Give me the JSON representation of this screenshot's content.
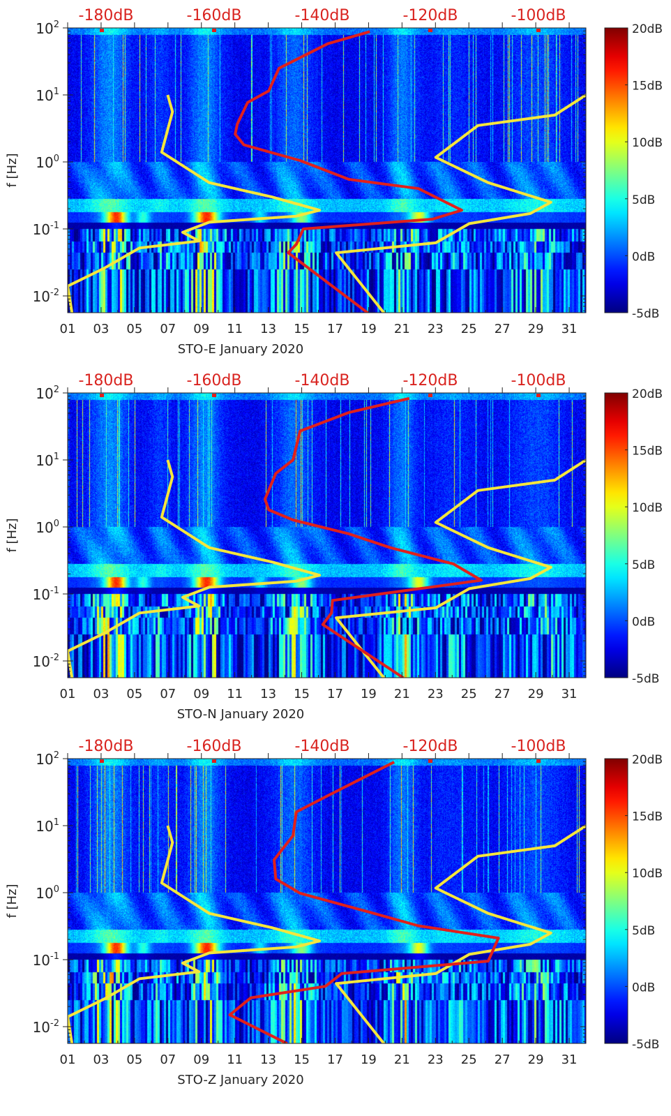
{
  "chart_data": [
    {
      "type": "heatmap",
      "title": "STO-E January 2020",
      "xlabel": "STO-E January 2020",
      "ylabel": "f [Hz]",
      "x_range_days": [
        1,
        32
      ],
      "x_tick_labels": [
        "01",
        "03",
        "05",
        "07",
        "09",
        "11",
        "13",
        "15",
        "17",
        "19",
        "21",
        "23",
        "25",
        "27",
        "29",
        "31"
      ],
      "y_range_hz": [
        0.0056,
        100
      ],
      "y_scale": "log",
      "y_tick_labels": [
        {
          "base": "10",
          "exp": "2"
        },
        {
          "base": "10",
          "exp": "1"
        },
        {
          "base": "10",
          "exp": "0"
        },
        {
          "base": "10",
          "exp": "-1"
        },
        {
          "base": "10",
          "exp": "-2"
        }
      ],
      "top_axis": {
        "range_db": [
          -187.6,
          -91.7
        ],
        "tick_values": [
          -180,
          -160,
          -140,
          -120,
          -100
        ],
        "tick_labels": [
          "-180dB",
          "-160dB",
          "-140dB",
          "-120dB",
          "-100dB"
        ]
      },
      "colorbar": {
        "range_db": [
          -5,
          20
        ],
        "tick_values": [
          20,
          15,
          10,
          5,
          0,
          -5
        ],
        "tick_labels": [
          "20dB",
          "15dB",
          "10dB",
          "5dB",
          "0dB",
          "-5dB"
        ],
        "colormap": "jet"
      },
      "curves": {
        "red": {
          "color": "#e0201c",
          "points_db_hz": [
            [
              -131.2,
              88
            ],
            [
              -139,
              58
            ],
            [
              -148,
              25
            ],
            [
              -149.9,
              11.5
            ],
            [
              -153.8,
              7.7
            ],
            [
              -155.7,
              3.7
            ],
            [
              -156.1,
              2.6
            ],
            [
              -154.5,
              1.8
            ],
            [
              -144.1,
              1.05
            ],
            [
              -135.1,
              0.55
            ],
            [
              -122.2,
              0.4
            ],
            [
              -114.2,
              0.19
            ],
            [
              -119.6,
              0.14
            ],
            [
              -143.5,
              0.1
            ],
            [
              -144.8,
              0.059
            ],
            [
              -146.3,
              0.044
            ],
            [
              -131.6,
              0.0056
            ]
          ]
        },
        "yellow_low": {
          "color": "#f5e63c",
          "points_db_hz": [
            [
              -168.6,
              10
            ],
            [
              -167.7,
              5.6
            ],
            [
              -169.7,
              1.4
            ],
            [
              -160.9,
              0.49
            ],
            [
              -149.3,
              0.3
            ],
            [
              -140.5,
              0.19
            ],
            [
              -144.8,
              0.155
            ],
            [
              -160.9,
              0.126
            ],
            [
              -165.8,
              0.089
            ],
            [
              -162.8,
              0.066
            ],
            [
              -173.8,
              0.052
            ],
            [
              -180.3,
              0.026
            ],
            [
              -187.1,
              0.014
            ],
            [
              -186.3,
              0.0056
            ]
          ]
        },
        "yellow_high": {
          "color": "#f5e63c",
          "points_db_hz": [
            [
              -91.2,
              10
            ],
            [
              -97,
              5
            ],
            [
              -111.2,
              3.5
            ],
            [
              -119,
              1.17
            ],
            [
              -109.3,
              0.49
            ],
            [
              -97.7,
              0.25
            ],
            [
              -101.5,
              0.17
            ],
            [
              -112.8,
              0.12
            ],
            [
              -119,
              0.062
            ],
            [
              -137.4,
              0.044
            ],
            [
              -128.6,
              0.0056
            ]
          ]
        }
      }
    },
    {
      "type": "heatmap",
      "title": "STO-N January 2020",
      "xlabel": "STO-N January 2020",
      "ylabel": "f [Hz]",
      "x_range_days": [
        1,
        32
      ],
      "x_tick_labels": [
        "01",
        "03",
        "05",
        "07",
        "09",
        "11",
        "13",
        "15",
        "17",
        "19",
        "21",
        "23",
        "25",
        "27",
        "29",
        "31"
      ],
      "y_range_hz": [
        0.0056,
        100
      ],
      "y_scale": "log",
      "y_tick_labels": [
        {
          "base": "10",
          "exp": "2"
        },
        {
          "base": "10",
          "exp": "1"
        },
        {
          "base": "10",
          "exp": "0"
        },
        {
          "base": "10",
          "exp": "-1"
        },
        {
          "base": "10",
          "exp": "-2"
        }
      ],
      "top_axis": {
        "range_db": [
          -187.6,
          -91.7
        ],
        "tick_values": [
          -180,
          -160,
          -140,
          -120,
          -100
        ],
        "tick_labels": [
          "-180dB",
          "-160dB",
          "-140dB",
          "-120dB",
          "-100dB"
        ]
      },
      "colorbar": {
        "range_db": [
          -5,
          20
        ],
        "tick_values": [
          20,
          15,
          10,
          5,
          0,
          -5
        ],
        "tick_labels": [
          "20dB",
          "15dB",
          "10dB",
          "5dB",
          "0dB",
          "-5dB"
        ],
        "colormap": "jet"
      },
      "curves": {
        "red": {
          "color": "#e0201c",
          "points_db_hz": [
            [
              -123.9,
              83
            ],
            [
              -135.1,
              51
            ],
            [
              -144.1,
              27
            ],
            [
              -145.4,
              10
            ],
            [
              -148.6,
              6.3
            ],
            [
              -150.6,
              2.6
            ],
            [
              -149.9,
              1.8
            ],
            [
              -145.4,
              1.27
            ],
            [
              -135.1,
              0.79
            ],
            [
              -127.4,
              0.49
            ],
            [
              -115.7,
              0.28
            ],
            [
              -110.6,
              0.16
            ],
            [
              -138.1,
              0.08
            ],
            [
              -138.3,
              0.052
            ],
            [
              -139.9,
              0.035
            ],
            [
              -125,
              0.0056
            ]
          ]
        },
        "yellow_low": {
          "color": "#f5e63c",
          "points_db_hz": [
            [
              -168.6,
              10
            ],
            [
              -167.7,
              5.6
            ],
            [
              -169.7,
              1.4
            ],
            [
              -160.9,
              0.49
            ],
            [
              -149.3,
              0.3
            ],
            [
              -140.5,
              0.19
            ],
            [
              -144.8,
              0.155
            ],
            [
              -160.9,
              0.126
            ],
            [
              -165.8,
              0.089
            ],
            [
              -162.8,
              0.066
            ],
            [
              -173.8,
              0.052
            ],
            [
              -180.3,
              0.026
            ],
            [
              -187.1,
              0.014
            ],
            [
              -186.3,
              0.0056
            ]
          ]
        },
        "yellow_high": {
          "color": "#f5e63c",
          "points_db_hz": [
            [
              -91.2,
              10
            ],
            [
              -97,
              5
            ],
            [
              -111.2,
              3.5
            ],
            [
              -119,
              1.17
            ],
            [
              -109.3,
              0.49
            ],
            [
              -97.7,
              0.25
            ],
            [
              -101.5,
              0.17
            ],
            [
              -112.8,
              0.12
            ],
            [
              -119,
              0.062
            ],
            [
              -137.4,
              0.044
            ],
            [
              -128.6,
              0.0056
            ]
          ]
        }
      }
    },
    {
      "type": "heatmap",
      "title": "STO-Z January 2020",
      "xlabel": "STO-Z January 2020",
      "ylabel": "f [Hz]",
      "x_range_days": [
        1,
        32
      ],
      "x_tick_labels": [
        "01",
        "03",
        "05",
        "07",
        "09",
        "11",
        "13",
        "15",
        "17",
        "19",
        "21",
        "23",
        "25",
        "27",
        "29",
        "31"
      ],
      "y_range_hz": [
        0.0056,
        100
      ],
      "y_scale": "log",
      "y_tick_labels": [
        {
          "base": "10",
          "exp": "2"
        },
        {
          "base": "10",
          "exp": "1"
        },
        {
          "base": "10",
          "exp": "0"
        },
        {
          "base": "10",
          "exp": "-1"
        },
        {
          "base": "10",
          "exp": "-2"
        }
      ],
      "top_axis": {
        "range_db": [
          -187.6,
          -91.7
        ],
        "tick_values": [
          -180,
          -160,
          -140,
          -120,
          -100
        ],
        "tick_labels": [
          "-180dB",
          "-160dB",
          "-140dB",
          "-120dB",
          "-100dB"
        ]
      },
      "colorbar": {
        "range_db": [
          -5,
          20
        ],
        "tick_values": [
          20,
          15,
          10,
          5,
          0,
          -5
        ],
        "tick_labels": [
          "20dB",
          "15dB",
          "10dB",
          "5dB",
          "0dB",
          "-5dB"
        ],
        "colormap": "jet"
      },
      "curves": {
        "red": {
          "color": "#e0201c",
          "points_db_hz": [
            [
              -126.7,
              89
            ],
            [
              -139,
              28
            ],
            [
              -144.8,
              16
            ],
            [
              -145.4,
              7.1
            ],
            [
              -148.9,
              3.1
            ],
            [
              -148.6,
              1.6
            ],
            [
              -144.1,
              0.98
            ],
            [
              -131.2,
              0.51
            ],
            [
              -122.2,
              0.32
            ],
            [
              -107.4,
              0.21
            ],
            [
              -109.3,
              0.095
            ],
            [
              -136.4,
              0.062
            ],
            [
              -139.4,
              0.04
            ],
            [
              -153.2,
              0.027
            ],
            [
              -157.1,
              0.015
            ],
            [
              -146.5,
              0.0056
            ]
          ]
        },
        "yellow_low": {
          "color": "#f5e63c",
          "points_db_hz": [
            [
              -168.6,
              10
            ],
            [
              -167.7,
              5.6
            ],
            [
              -169.7,
              1.4
            ],
            [
              -160.9,
              0.49
            ],
            [
              -149.3,
              0.3
            ],
            [
              -140.5,
              0.19
            ],
            [
              -144.8,
              0.155
            ],
            [
              -160.9,
              0.126
            ],
            [
              -165.8,
              0.089
            ],
            [
              -162.8,
              0.066
            ],
            [
              -173.8,
              0.052
            ],
            [
              -180.3,
              0.026
            ],
            [
              -187.1,
              0.014
            ],
            [
              -186.3,
              0.0056
            ]
          ]
        },
        "yellow_high": {
          "color": "#f5e63c",
          "points_db_hz": [
            [
              -91.2,
              10
            ],
            [
              -97,
              5
            ],
            [
              -111.2,
              3.5
            ],
            [
              -119,
              1.17
            ],
            [
              -109.3,
              0.49
            ],
            [
              -97.7,
              0.25
            ],
            [
              -101.5,
              0.17
            ],
            [
              -112.8,
              0.12
            ],
            [
              -119,
              0.062
            ],
            [
              -137.4,
              0.044
            ],
            [
              -128.6,
              0.0056
            ]
          ]
        }
      }
    }
  ]
}
